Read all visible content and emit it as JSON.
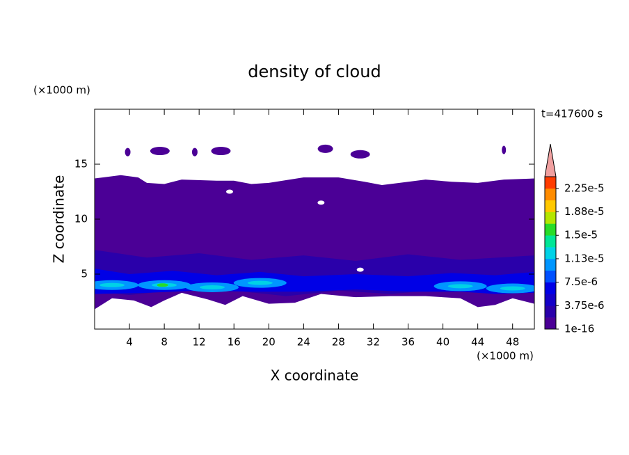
{
  "chart_data": {
    "type": "contour",
    "title": "density of cloud",
    "x_label": "X coordinate",
    "y_label": "Z coordinate",
    "x_unit": "(×1000 m)",
    "y_unit": "(×1000 m)",
    "time_label": "t=417600 s",
    "xlim": [
      0,
      50.5
    ],
    "ylim": [
      0,
      20
    ],
    "xticks": [
      4,
      8,
      12,
      16,
      20,
      24,
      28,
      32,
      36,
      40,
      44,
      48
    ],
    "yticks": [
      5,
      10,
      15
    ],
    "colorbar": {
      "colors": [
        "#4b0096",
        "#2a00aa",
        "#1400c8",
        "#0000e6",
        "#0050ff",
        "#0096ff",
        "#00d2e6",
        "#00e696",
        "#28dc28",
        "#b4e600",
        "#ffc800",
        "#ff8c00",
        "#ff3c00"
      ],
      "extend_color": "#f0a0a0",
      "levels": [
        1e-16,
        {
          "value": 3.75e-06,
          "label": "3.75e-6"
        },
        {
          "value": 7.5e-06,
          "label": "7.5e-6"
        },
        {
          "value": 1.13e-05,
          "label": "1.13e-5"
        },
        {
          "value": 1.5e-05,
          "label": "1.5e-5"
        },
        {
          "value": 1.88e-05,
          "label": "1.88e-5"
        },
        {
          "value": 2.25e-05,
          "label": "2.25e-5"
        }
      ]
    }
  }
}
